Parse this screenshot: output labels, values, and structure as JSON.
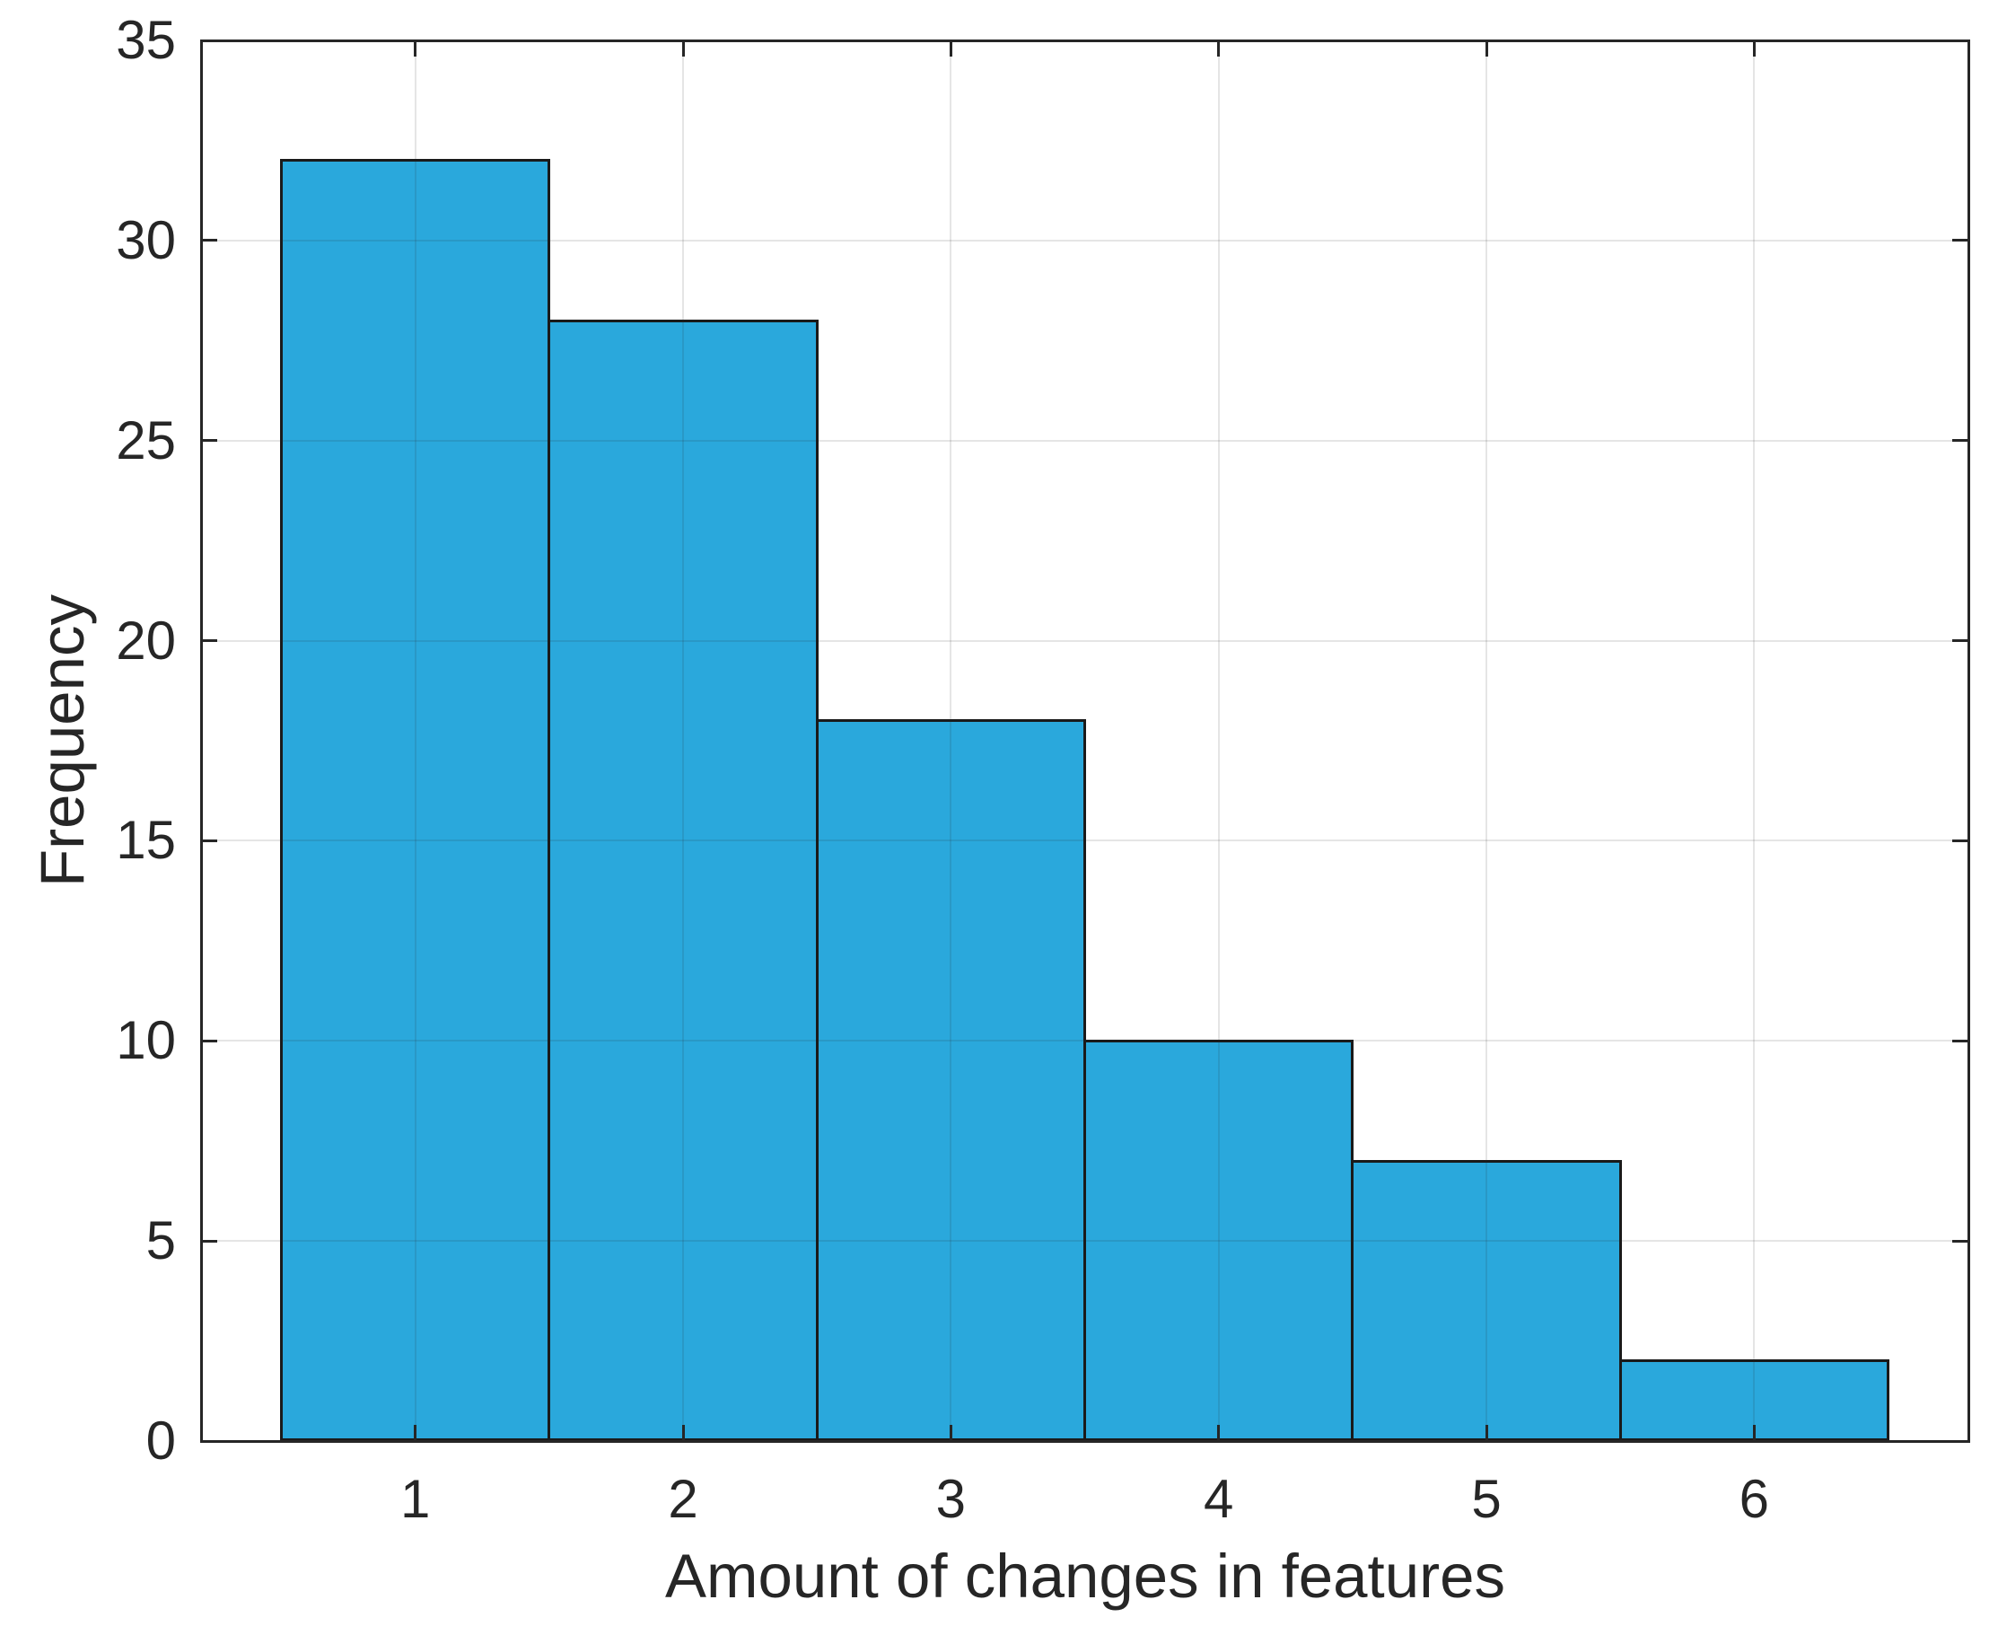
{
  "figure": {
    "background_color": "#FFFFFF"
  },
  "chart_data": {
    "type": "bar",
    "subtype": "histogram",
    "title": "",
    "xlabel": "Amount of changes in features",
    "ylabel": "Frequency",
    "categories": [
      "1",
      "2",
      "3",
      "4",
      "5",
      "6"
    ],
    "values": [
      32,
      28,
      18,
      10,
      7,
      2
    ],
    "bin_edges": [
      0.5,
      1.5,
      2.5,
      3.5,
      4.5,
      5.5,
      6.5
    ],
    "xlim": [
      0.2,
      6.8
    ],
    "ylim": [
      0,
      35
    ],
    "x_tick_values": [
      1,
      2,
      3,
      4,
      5,
      6
    ],
    "x_tick_labels": [
      "1",
      "2",
      "3",
      "4",
      "5",
      "6"
    ],
    "y_tick_values": [
      0,
      5,
      10,
      15,
      20,
      25,
      30,
      35
    ],
    "y_tick_labels": [
      "0",
      "5",
      "10",
      "15",
      "20",
      "25",
      "30",
      "35"
    ],
    "grid": "on",
    "legend": "none",
    "tick_direction": "in",
    "bar_fill_color": "#2AA8DC",
    "bar_edge_color": "#1A1A1A",
    "axis_color": "#262626",
    "grid_color": "#262626",
    "grid_alpha": 0.12
  }
}
